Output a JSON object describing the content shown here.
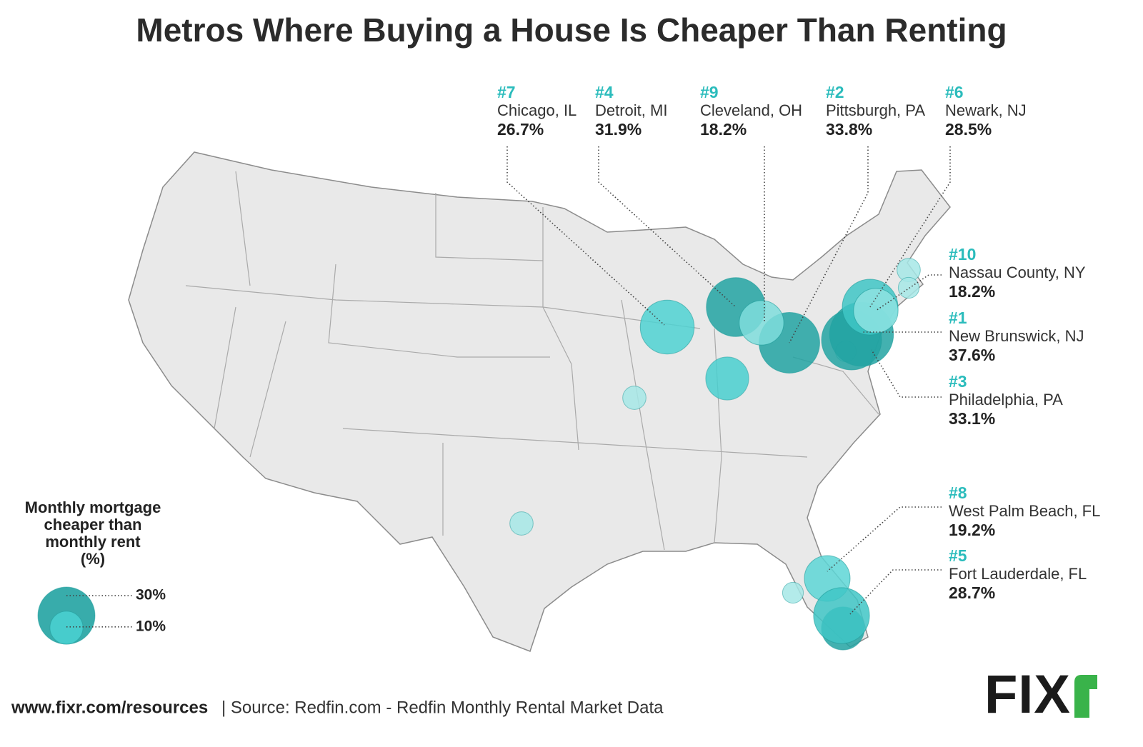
{
  "title": "Metros Where Buying a House Is Cheaper Than Renting",
  "metros": [
    {
      "rank": "#7",
      "name": "Chicago, IL",
      "label": "26.7%",
      "value": 26.7,
      "color": "#4fd2d2"
    },
    {
      "rank": "#4",
      "name": "Detroit, MI",
      "label": "31.9%",
      "value": 31.9,
      "color": "#22a3a2"
    },
    {
      "rank": "#9",
      "name": "Cleveland, OH",
      "label": "18.2%",
      "value": 18.2,
      "color": "#7fdddc"
    },
    {
      "rank": "#2",
      "name": "Pittsburgh, PA",
      "label": "33.8%",
      "value": 33.8,
      "color": "#22a3a2"
    },
    {
      "rank": "#6",
      "name": "Newark, NJ",
      "label": "28.5%",
      "value": 28.5,
      "color": "#3fc6c6"
    },
    {
      "rank": "#10",
      "name": "Nassau County, NY",
      "label": "18.2%",
      "value": 18.2,
      "color": "#8ee3e2"
    },
    {
      "rank": "#1",
      "name": "New Brunswick, NJ",
      "label": "37.6%",
      "value": 37.6,
      "color": "#22a3a2"
    },
    {
      "rank": "#3",
      "name": "Philadelphia, PA",
      "label": "33.1%",
      "value": 33.1,
      "color": "#22a3a2"
    },
    {
      "rank": "#8",
      "name": "West Palm Beach, FL",
      "label": "19.2%",
      "value": 19.2,
      "color": "#5dd6d6"
    },
    {
      "rank": "#5",
      "name": "Fort Lauderdale, FL",
      "label": "28.7%",
      "value": 28.7,
      "color": "#3fc6c6"
    }
  ],
  "other_metros": [
    {
      "value": 5,
      "color": "#a6e8e6"
    },
    {
      "value": 17,
      "color": "#49cfcf"
    },
    {
      "value": 5,
      "color": "#a6e8e6"
    },
    {
      "value": 4,
      "color": "#a6e8e6"
    },
    {
      "value": 5,
      "color": "#a6e8e6"
    },
    {
      "value": 4,
      "color": "#a6e8e6"
    },
    {
      "value": 4,
      "color": "#a6e8e6"
    },
    {
      "value": 17,
      "color": "#22a3a2"
    }
  ],
  "legend": {
    "title": [
      "Monthly mortgage",
      "cheaper than",
      "monthly rent",
      "(%)"
    ],
    "sizes": [
      {
        "value": 30,
        "label": "30%",
        "color": "#22a3a2"
      },
      {
        "value": 10,
        "label": "10%",
        "color": "#49cfcf"
      }
    ]
  },
  "footer": {
    "site": "www.fixr.com/resources",
    "source": "| Source: Redfin.com - Redfin Monthly Rental Market Data"
  },
  "logo": "FIX"
}
